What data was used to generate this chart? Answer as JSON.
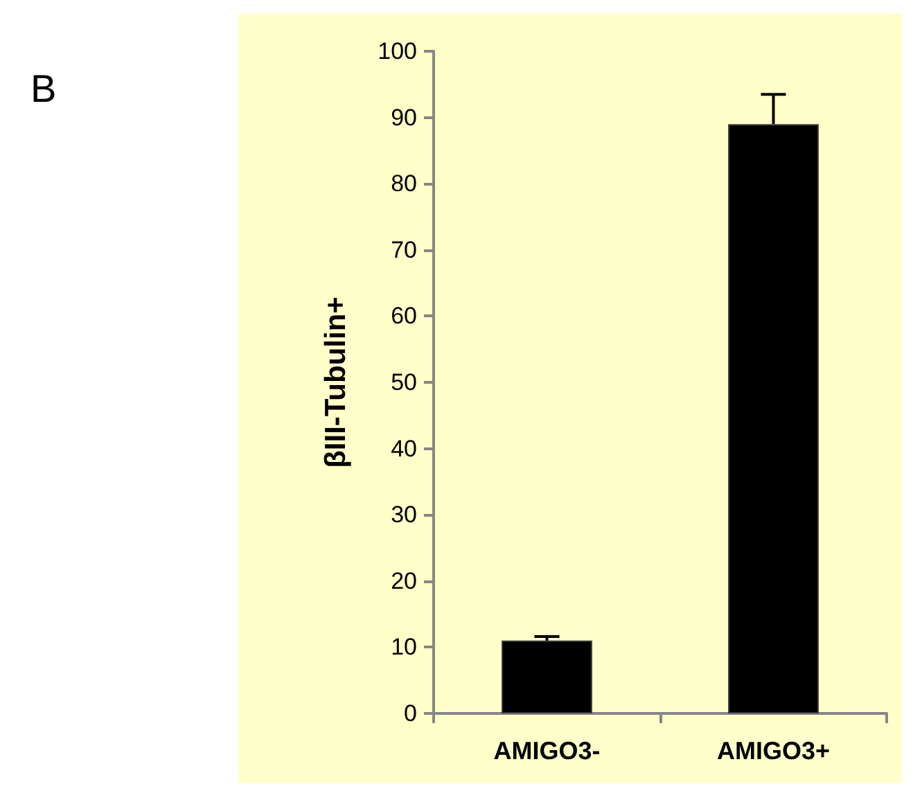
{
  "chart_data": {
    "type": "bar",
    "ylabel": "βIII-Tubulin+",
    "annotations": [
      "B"
    ],
    "categories": [
      "AMIGO3-",
      "AMIGO3+"
    ],
    "values": [
      11,
      89
    ],
    "color": "#000000",
    "errors": [
      [
        11,
        11.6
      ],
      [
        89,
        93.5
      ]
    ],
    "ylim": [
      0,
      100
    ],
    "yticks": [
      0,
      10,
      20,
      30,
      40,
      50,
      60,
      70,
      80,
      90,
      100
    ],
    "grid": false
  }
}
